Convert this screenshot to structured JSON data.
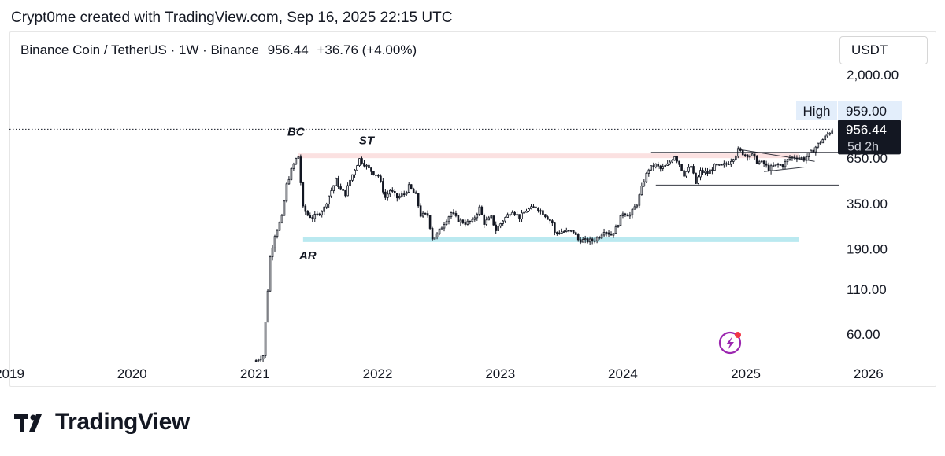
{
  "caption": "Crypt0me created with TradingView.com, Sep 16, 2025 22:15 UTC",
  "header": {
    "pair": "Binance Coin / TetherUS · 1W · Binance",
    "last_price": "956.44",
    "change": "+36.76 (+4.00%)",
    "currency": "USDT"
  },
  "brand": "TradingView",
  "colors": {
    "candle": "#131722",
    "resistance_zone": "#f8c9c9",
    "support_zone": "#a9e3ec",
    "price_label_bg": "#131722",
    "high_label_bg": "#e3eefb",
    "zap_icon": "#9c27b0"
  },
  "chart_data": {
    "type": "candlestick",
    "title": "",
    "xlabel": "",
    "ylabel": "",
    "y_scale": "log",
    "ylim": [
      38,
      2400
    ],
    "x_range": [
      "2019-01-01",
      "2026-07-01"
    ],
    "x_ticks": [
      "2019",
      "2020",
      "2021",
      "2022",
      "2023",
      "2024",
      "2025",
      "2026"
    ],
    "y_ticks": [
      {
        "value": 2000,
        "label": "2,000.00"
      },
      {
        "value": 650,
        "label": "650.00"
      },
      {
        "value": 350,
        "label": "350.00"
      },
      {
        "value": 190,
        "label": "190.00"
      },
      {
        "value": 110,
        "label": "110.00"
      },
      {
        "value": 60,
        "label": "60.00"
      }
    ],
    "price_path": [
      [
        "2021-01-04",
        42
      ],
      [
        "2021-01-25",
        45
      ],
      [
        "2021-02-15",
        170
      ],
      [
        "2021-03-01",
        230
      ],
      [
        "2021-03-22",
        290
      ],
      [
        "2021-04-05",
        450
      ],
      [
        "2021-04-19",
        550
      ],
      [
        "2021-05-03",
        640
      ],
      [
        "2021-05-10",
        660
      ],
      [
        "2021-05-24",
        330
      ],
      [
        "2021-06-07",
        300
      ],
      [
        "2021-06-21",
        290
      ],
      [
        "2021-07-05",
        300
      ],
      [
        "2021-07-26",
        330
      ],
      [
        "2021-08-09",
        390
      ],
      [
        "2021-08-30",
        480
      ],
      [
        "2021-09-13",
        420
      ],
      [
        "2021-09-27",
        400
      ],
      [
        "2021-10-11",
        480
      ],
      [
        "2021-10-25",
        560
      ],
      [
        "2021-11-08",
        640
      ],
      [
        "2021-11-22",
        600
      ],
      [
        "2021-12-06",
        560
      ],
      [
        "2021-12-20",
        530
      ],
      [
        "2022-01-03",
        510
      ],
      [
        "2022-01-24",
        380
      ],
      [
        "2022-02-07",
        420
      ],
      [
        "2022-02-28",
        380
      ],
      [
        "2022-03-21",
        400
      ],
      [
        "2022-04-04",
        440
      ],
      [
        "2022-04-25",
        390
      ],
      [
        "2022-05-09",
        300
      ],
      [
        "2022-05-30",
        300
      ],
      [
        "2022-06-13",
        220
      ],
      [
        "2022-06-27",
        230
      ],
      [
        "2022-07-18",
        270
      ],
      [
        "2022-08-08",
        310
      ],
      [
        "2022-08-29",
        280
      ],
      [
        "2022-09-19",
        270
      ],
      [
        "2022-10-10",
        275
      ],
      [
        "2022-10-31",
        330
      ],
      [
        "2022-11-14",
        270
      ],
      [
        "2022-12-05",
        290
      ],
      [
        "2022-12-19",
        245
      ],
      [
        "2023-01-09",
        280
      ],
      [
        "2023-02-06",
        320
      ],
      [
        "2023-02-27",
        290
      ],
      [
        "2023-03-20",
        320
      ],
      [
        "2023-04-17",
        335
      ],
      [
        "2023-05-08",
        310
      ],
      [
        "2023-06-05",
        270
      ],
      [
        "2023-06-12",
        235
      ],
      [
        "2023-07-03",
        240
      ],
      [
        "2023-08-07",
        240
      ],
      [
        "2023-08-21",
        215
      ],
      [
        "2023-09-11",
        212
      ],
      [
        "2023-10-02",
        212
      ],
      [
        "2023-10-23",
        225
      ],
      [
        "2023-11-06",
        245
      ],
      [
        "2023-11-27",
        230
      ],
      [
        "2023-12-11",
        250
      ],
      [
        "2024-01-01",
        310
      ],
      [
        "2024-01-22",
        300
      ],
      [
        "2024-02-12",
        350
      ],
      [
        "2024-03-04",
        480
      ],
      [
        "2024-03-18",
        560
      ],
      [
        "2024-04-08",
        590
      ],
      [
        "2024-04-22",
        560
      ],
      [
        "2024-05-13",
        590
      ],
      [
        "2024-06-03",
        670
      ],
      [
        "2024-06-17",
        600
      ],
      [
        "2024-07-01",
        520
      ],
      [
        "2024-07-22",
        580
      ],
      [
        "2024-08-05",
        460
      ],
      [
        "2024-08-19",
        540
      ],
      [
        "2024-09-09",
        530
      ],
      [
        "2024-09-30",
        580
      ],
      [
        "2024-10-21",
        580
      ],
      [
        "2024-11-11",
        610
      ],
      [
        "2024-12-02",
        680
      ],
      [
        "2024-12-09",
        720
      ],
      [
        "2024-12-30",
        680
      ],
      [
        "2025-01-20",
        670
      ],
      [
        "2025-02-03",
        620
      ],
      [
        "2025-02-24",
        600
      ],
      [
        "2025-03-10",
        560
      ],
      [
        "2025-03-31",
        590
      ],
      [
        "2025-04-21",
        590
      ],
      [
        "2025-05-12",
        650
      ],
      [
        "2025-06-02",
        660
      ],
      [
        "2025-06-23",
        640
      ],
      [
        "2025-07-14",
        700
      ],
      [
        "2025-08-04",
        780
      ],
      [
        "2025-08-25",
        860
      ],
      [
        "2025-09-15",
        956
      ]
    ],
    "zones": [
      {
        "from": "2021-05-10",
        "to": "2026-05-01",
        "low": 650,
        "high": 690
      },
      {
        "from": "2021-05-24",
        "to": "2026-05-01",
        "low": 212,
        "high": 222
      }
    ],
    "lines": [
      {
        "x1": "2024-03-25",
        "y1": 700,
        "x2": "2025-10-15",
        "y2": 700
      },
      {
        "x1": "2024-04-08",
        "y1": 450,
        "x2": "2025-10-05",
        "y2": 450
      },
      {
        "x1": "2024-12-09",
        "y1": 730,
        "x2": "2025-07-25",
        "y2": 620
      },
      {
        "x1": "2025-02-24",
        "y1": 540,
        "x2": "2025-06-30",
        "y2": 575
      }
    ],
    "annotations": [
      {
        "text": "BC",
        "x": "2021-05-03",
        "y": 880
      },
      {
        "text": "ST",
        "x": "2021-11-29",
        "y": 780
      },
      {
        "text": "AR",
        "x": "2021-06-07",
        "y": 165
      }
    ],
    "last_price": {
      "value": 956.44,
      "label": "956.44",
      "countdown": "5d 2h"
    },
    "high": {
      "label": "High",
      "value": 959.0,
      "value_label": "959.00"
    }
  }
}
